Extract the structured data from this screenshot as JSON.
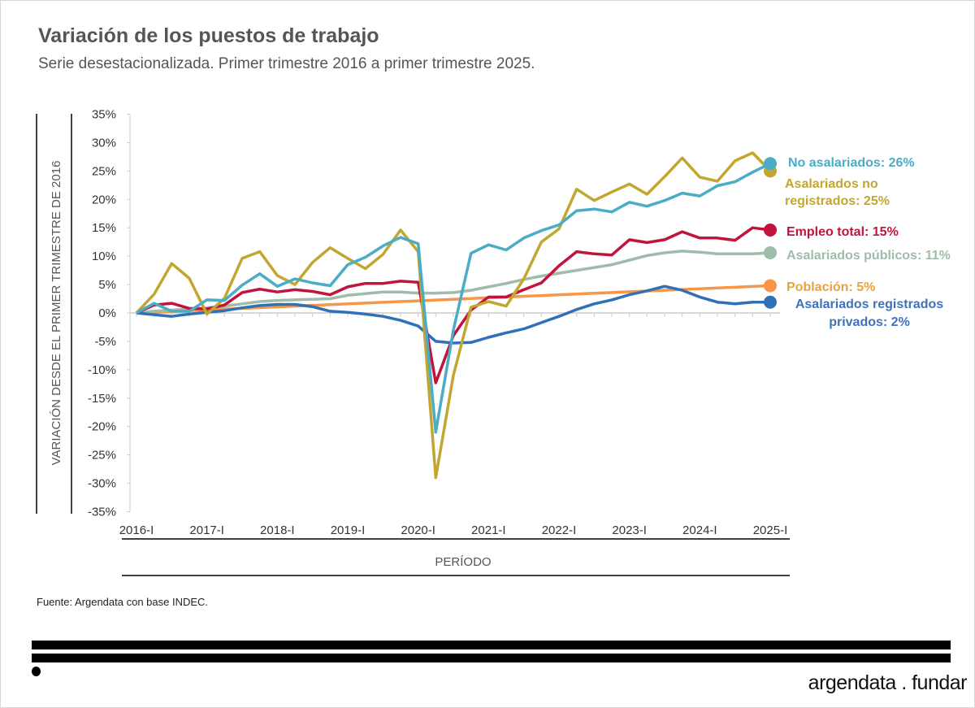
{
  "header": {
    "title": "Variación de los puestos de trabajo",
    "subtitle": "Serie desestacionalizada. Primer trimestre 2016 a primer trimestre 2025."
  },
  "footer": {
    "source": "Fuente: Argendata con base INDEC.",
    "brand": "argendata . fundar"
  },
  "chart_data": {
    "type": "line",
    "title": "Variación de los puestos de trabajo",
    "xlabel": "PERÍODO",
    "ylabel": "VARIACIÓN DESDE EL PRIMER TRIMESTRE DE 2016",
    "ylim": [
      -35,
      35
    ],
    "yticks": [
      35,
      30,
      25,
      20,
      15,
      10,
      5,
      0,
      -5,
      -10,
      -15,
      -20,
      -25,
      -30,
      -35
    ],
    "ytick_labels": [
      "35%",
      "30%",
      "25%",
      "20%",
      "15%",
      "10%",
      "5%",
      "0%",
      "-5%",
      "-10%",
      "-15%",
      "-20%",
      "-25%",
      "-30%",
      "-35%"
    ],
    "xtick_labels": [
      "2016-I",
      "2017-I",
      "2018-I",
      "2019-I",
      "2020-I",
      "2021-I",
      "2022-I",
      "2023-I",
      "2024-I",
      "2025-I"
    ],
    "n_quarters": 37,
    "series": [
      {
        "name": "No asalariados",
        "label": "No asalariados: 26%",
        "color": "#4bacc6",
        "values": [
          0,
          1.7,
          0.3,
          0.3,
          2.3,
          2.2,
          4.9,
          6.9,
          4.7,
          6.0,
          5.3,
          4.8,
          8.5,
          9.8,
          11.8,
          13.3,
          12.2,
          -21,
          -3,
          10.5,
          12,
          11.1,
          13.2,
          14.5,
          15.5,
          18,
          18.3,
          17.8,
          19.5,
          18.8,
          19.8,
          21.1,
          20.6,
          22.4,
          23.1,
          24.8,
          26.3
        ]
      },
      {
        "name": "Asalariados no registrados",
        "label": "Asalariados no registrados: 25%",
        "color": "#c3a630",
        "values": [
          0,
          3.3,
          8.7,
          6.1,
          -0.2,
          2.6,
          9.6,
          10.8,
          6.6,
          5.0,
          8.9,
          11.5,
          9.6,
          7.8,
          10.3,
          14.6,
          10.8,
          -29,
          -11,
          1,
          2,
          1.2,
          6,
          12.5,
          14.8,
          21.8,
          19.8,
          21.3,
          22.7,
          20.9,
          24,
          27.3,
          23.9,
          23.2,
          26.8,
          28.2,
          25
        ]
      },
      {
        "name": "Empleo total",
        "label": "Empleo total: 15%",
        "color": "#c0143c",
        "values": [
          0,
          1.4,
          1.7,
          0.8,
          0.7,
          1.4,
          3.6,
          4.2,
          3.7,
          4.1,
          3.8,
          3.2,
          4.6,
          5.2,
          5.2,
          5.6,
          5.4,
          -12.3,
          -4,
          0.5,
          2.8,
          2.8,
          4.1,
          5.3,
          8.3,
          10.8,
          10.4,
          10.2,
          12.9,
          12.4,
          12.9,
          14.3,
          13.2,
          13.2,
          12.8,
          15,
          14.6
        ]
      },
      {
        "name": "Asalariados públicos",
        "label": "Asalariados públicos: 11%",
        "color": "#9fbba9",
        "values": [
          0,
          0.3,
          0.5,
          0.7,
          0.9,
          1.2,
          1.6,
          2.0,
          2.2,
          2.3,
          2.4,
          2.5,
          3.1,
          3.4,
          3.7,
          3.7,
          3.5,
          3.5,
          3.6,
          4.0,
          4.6,
          5.2,
          5.9,
          6.5,
          7.0,
          7.5,
          8.0,
          8.5,
          9.3,
          10.1,
          10.6,
          10.9,
          10.7,
          10.4,
          10.4,
          10.4,
          10.6
        ]
      },
      {
        "name": "Población",
        "label": "Población: 5%",
        "color": "#f79646",
        "values": [
          0,
          0.13,
          0.27,
          0.4,
          0.53,
          0.67,
          0.8,
          0.93,
          1.07,
          1.2,
          1.33,
          1.47,
          1.6,
          1.73,
          1.87,
          2.0,
          2.13,
          2.27,
          2.4,
          2.53,
          2.67,
          2.8,
          2.93,
          3.07,
          3.2,
          3.33,
          3.47,
          3.6,
          3.73,
          3.87,
          4.0,
          4.13,
          4.27,
          4.4,
          4.53,
          4.67,
          4.8
        ]
      },
      {
        "name": "Asalariados registrados privados",
        "label": "Asalariados registrados privados: 2%",
        "color": "#3070b8",
        "values": [
          0,
          -0.3,
          -0.6,
          -0.2,
          0.1,
          0.4,
          0.9,
          1.3,
          1.5,
          1.5,
          1.1,
          0.3,
          0.1,
          -0.2,
          -0.6,
          -1.3,
          -2.3,
          -5,
          -5.3,
          -5.2,
          -4.3,
          -3.5,
          -2.8,
          -1.7,
          -0.6,
          0.6,
          1.6,
          2.3,
          3.2,
          3.9,
          4.7,
          4.0,
          2.8,
          1.9,
          1.6,
          1.9,
          1.9
        ]
      }
    ],
    "end_labels": {
      "no_asal": "No asalariados: 26%",
      "no_reg_1": "Asalariados no",
      "no_reg_2": "registrados: 25%",
      "total": "Empleo total: 15%",
      "publicos": "Asalariados públicos: 11%",
      "poblacion": "Población: 5%",
      "priv_1": "Asalariados registrados",
      "priv_2": "privados: 2%"
    },
    "grid": false,
    "legend": "right (end-of-line labels)"
  }
}
